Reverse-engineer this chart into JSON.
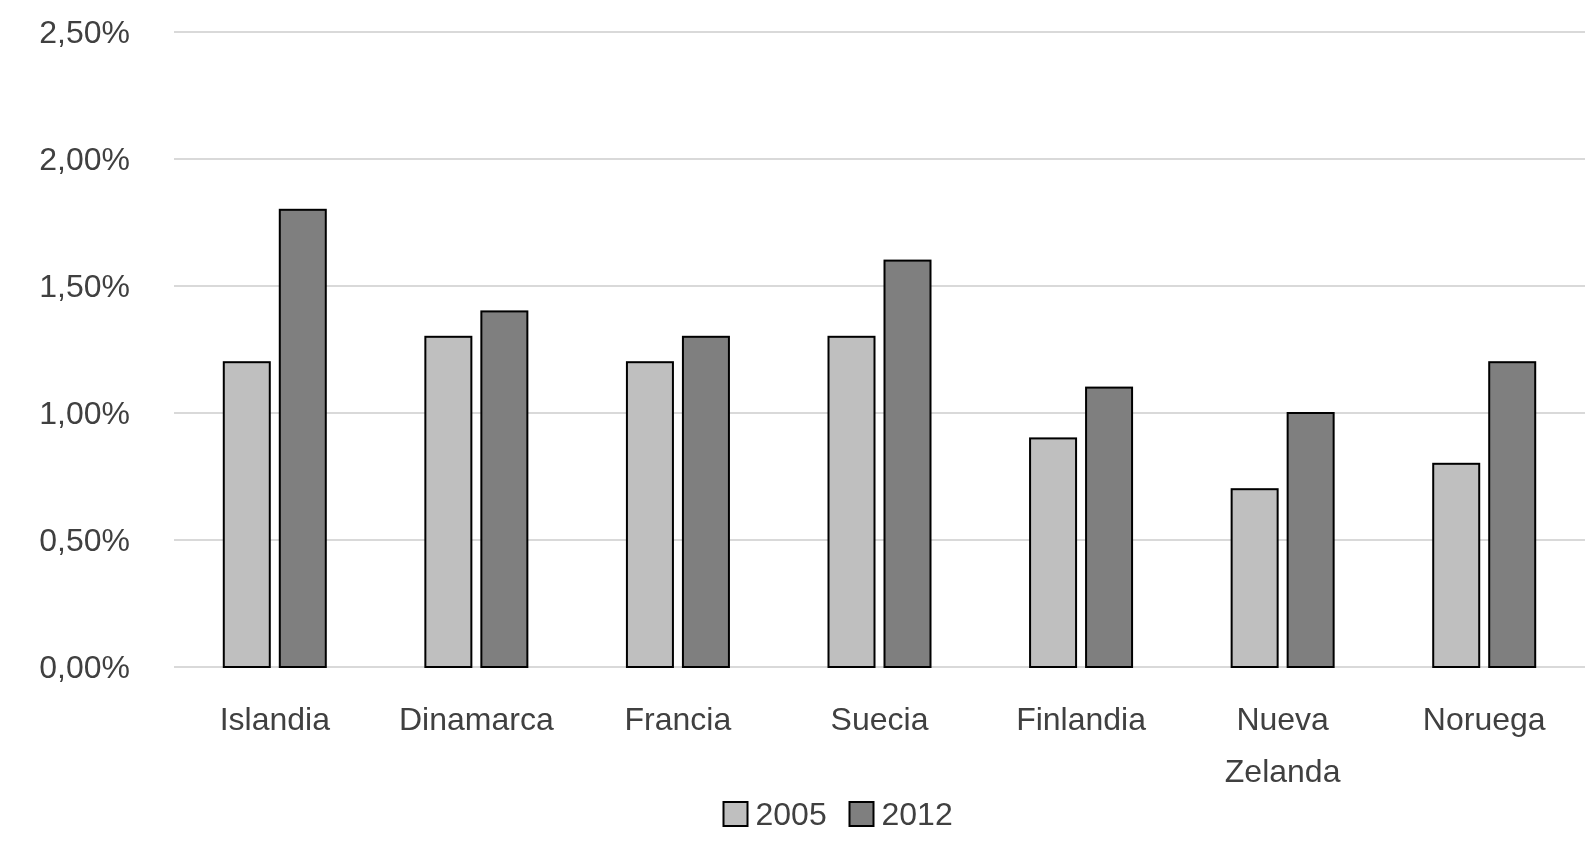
{
  "chart_data": {
    "type": "bar",
    "categories": [
      "Islandia",
      "Dinamarca",
      "Francia",
      "Suecia",
      "Finlandia",
      "Nueva Zelanda",
      "Noruega"
    ],
    "series": [
      {
        "name": "2005",
        "color": "#bfbfbf",
        "values": [
          1.2,
          1.3,
          1.2,
          1.3,
          0.9,
          0.7,
          0.8
        ]
      },
      {
        "name": "2012",
        "color": "#7f7f7f",
        "values": [
          1.8,
          1.4,
          1.3,
          1.6,
          1.1,
          1.0,
          1.2
        ]
      }
    ],
    "ylim": [
      0,
      2.5
    ],
    "yticks": [
      {
        "value": 0,
        "label": "0,00%"
      },
      {
        "value": 0.5,
        "label": "0,50%"
      },
      {
        "value": 1,
        "label": "1,00%"
      },
      {
        "value": 1.5,
        "label": "1,50%"
      },
      {
        "value": 2,
        "label": "2,00%"
      },
      {
        "value": 2.5,
        "label": "2,50%"
      }
    ],
    "grid": "y",
    "legend": "bottom"
  }
}
